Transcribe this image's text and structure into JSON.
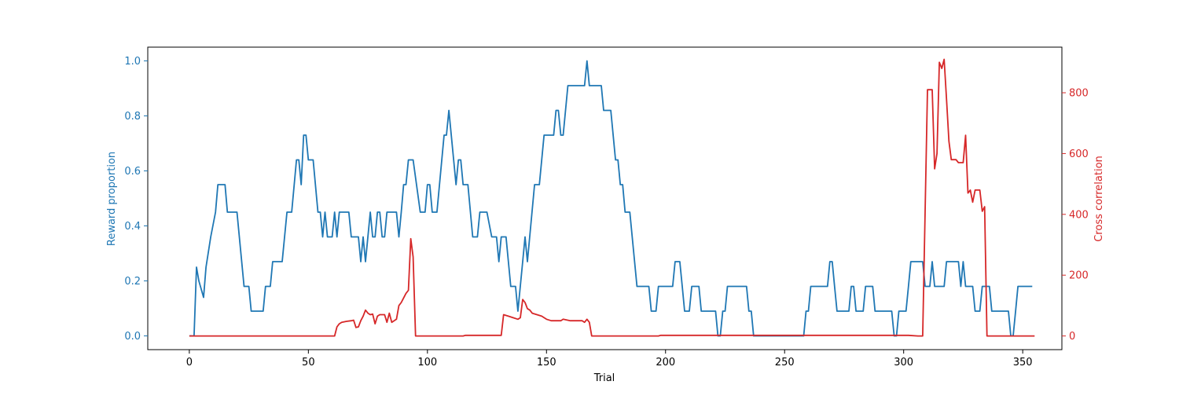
{
  "chart_data": {
    "type": "line",
    "title": "",
    "xlabel": "Trial",
    "ylabel_left": "Reward proportion",
    "ylabel_right": "Cross correlation",
    "xlim": [
      -17.45,
      366.45
    ],
    "ylim_left": [
      -0.05,
      1.05
    ],
    "ylim_right": [
      -45,
      950
    ],
    "x_ticks": [
      0,
      50,
      100,
      150,
      200,
      250,
      300,
      350
    ],
    "y_left_ticks": [
      "0.0",
      "0.2",
      "0.4",
      "0.6",
      "0.8",
      "1.0"
    ],
    "y_right_ticks": [
      0,
      200,
      400,
      600,
      800
    ],
    "colors": {
      "left": "#1f77b4",
      "right": "#d62728",
      "axes": "#000000"
    },
    "grid": false,
    "series": [
      {
        "axis": "left",
        "points": [
          [
            0,
            0
          ],
          [
            2,
            0
          ],
          [
            3,
            0.25
          ],
          [
            4,
            0.2
          ],
          [
            6,
            0.14
          ],
          [
            7,
            0.25
          ],
          [
            9,
            0.36
          ],
          [
            11,
            0.45
          ],
          [
            12,
            0.55
          ],
          [
            15,
            0.55
          ],
          [
            16,
            0.45
          ],
          [
            20,
            0.45
          ],
          [
            23,
            0.18
          ],
          [
            25,
            0.18
          ],
          [
            26,
            0.09
          ],
          [
            31,
            0.09
          ],
          [
            32,
            0.18
          ],
          [
            34,
            0.18
          ],
          [
            35,
            0.27
          ],
          [
            39,
            0.27
          ],
          [
            41,
            0.45
          ],
          [
            43,
            0.45
          ],
          [
            45,
            0.64
          ],
          [
            46,
            0.64
          ],
          [
            47,
            0.55
          ],
          [
            48,
            0.73
          ],
          [
            49,
            0.73
          ],
          [
            50,
            0.64
          ],
          [
            52,
            0.64
          ],
          [
            54,
            0.45
          ],
          [
            55,
            0.45
          ],
          [
            56,
            0.36
          ],
          [
            57,
            0.45
          ],
          [
            58,
            0.36
          ],
          [
            60,
            0.36
          ],
          [
            61,
            0.45
          ],
          [
            62,
            0.36
          ],
          [
            63,
            0.45
          ],
          [
            67,
            0.45
          ],
          [
            68,
            0.36
          ],
          [
            71,
            0.36
          ],
          [
            72,
            0.27
          ],
          [
            73,
            0.36
          ],
          [
            74,
            0.27
          ],
          [
            76,
            0.45
          ],
          [
            77,
            0.36
          ],
          [
            78,
            0.36
          ],
          [
            79,
            0.45
          ],
          [
            80,
            0.45
          ],
          [
            81,
            0.36
          ],
          [
            82,
            0.36
          ],
          [
            83,
            0.45
          ],
          [
            87,
            0.45
          ],
          [
            88,
            0.36
          ],
          [
            89,
            0.45
          ],
          [
            90,
            0.55
          ],
          [
            91,
            0.55
          ],
          [
            92,
            0.64
          ],
          [
            94,
            0.64
          ],
          [
            97,
            0.45
          ],
          [
            99,
            0.45
          ],
          [
            100,
            0.55
          ],
          [
            101,
            0.55
          ],
          [
            102,
            0.45
          ],
          [
            104,
            0.45
          ],
          [
            107,
            0.73
          ],
          [
            108,
            0.73
          ],
          [
            109,
            0.82
          ],
          [
            112,
            0.55
          ],
          [
            113,
            0.64
          ],
          [
            114,
            0.64
          ],
          [
            115,
            0.55
          ],
          [
            117,
            0.55
          ],
          [
            119,
            0.36
          ],
          [
            121,
            0.36
          ],
          [
            122,
            0.45
          ],
          [
            125,
            0.45
          ],
          [
            127,
            0.36
          ],
          [
            129,
            0.36
          ],
          [
            130,
            0.27
          ],
          [
            131,
            0.36
          ],
          [
            133,
            0.36
          ],
          [
            135,
            0.18
          ],
          [
            137,
            0.18
          ],
          [
            138,
            0.09
          ],
          [
            140,
            0.27
          ],
          [
            141,
            0.36
          ],
          [
            142,
            0.27
          ],
          [
            145,
            0.55
          ],
          [
            147,
            0.55
          ],
          [
            149,
            0.73
          ],
          [
            153,
            0.73
          ],
          [
            154,
            0.82
          ],
          [
            155,
            0.82
          ],
          [
            156,
            0.73
          ],
          [
            157,
            0.73
          ],
          [
            159,
            0.91
          ],
          [
            166,
            0.91
          ],
          [
            167,
            1.0
          ],
          [
            168,
            0.91
          ],
          [
            173,
            0.91
          ],
          [
            174,
            0.82
          ],
          [
            177,
            0.82
          ],
          [
            179,
            0.64
          ],
          [
            180,
            0.64
          ],
          [
            181,
            0.55
          ],
          [
            182,
            0.55
          ],
          [
            183,
            0.45
          ],
          [
            185,
            0.45
          ],
          [
            188,
            0.18
          ],
          [
            193,
            0.18
          ],
          [
            194,
            0.09
          ],
          [
            196,
            0.09
          ],
          [
            197,
            0.18
          ],
          [
            203,
            0.18
          ],
          [
            204,
            0.27
          ],
          [
            206,
            0.27
          ],
          [
            207,
            0.18
          ],
          [
            208,
            0.09
          ],
          [
            210,
            0.09
          ],
          [
            211,
            0.18
          ],
          [
            214,
            0.18
          ],
          [
            215,
            0.09
          ],
          [
            221,
            0.09
          ],
          [
            222,
            0
          ],
          [
            223,
            0
          ],
          [
            224,
            0.09
          ],
          [
            225,
            0.09
          ],
          [
            226,
            0.18
          ],
          [
            234,
            0.18
          ],
          [
            235,
            0.09
          ],
          [
            236,
            0.09
          ],
          [
            237,
            0
          ],
          [
            258,
            0
          ],
          [
            259,
            0.09
          ],
          [
            260,
            0.09
          ],
          [
            261,
            0.18
          ],
          [
            268,
            0.18
          ],
          [
            269,
            0.27
          ],
          [
            270,
            0.27
          ],
          [
            271,
            0.18
          ],
          [
            272,
            0.09
          ],
          [
            277,
            0.09
          ],
          [
            278,
            0.18
          ],
          [
            279,
            0.18
          ],
          [
            280,
            0.09
          ],
          [
            283,
            0.09
          ],
          [
            284,
            0.18
          ],
          [
            287,
            0.18
          ],
          [
            288,
            0.09
          ],
          [
            295,
            0.09
          ],
          [
            296,
            0
          ],
          [
            297,
            0
          ],
          [
            298,
            0.09
          ],
          [
            301,
            0.09
          ],
          [
            302,
            0.18
          ],
          [
            303,
            0.27
          ],
          [
            308,
            0.27
          ],
          [
            309,
            0.18
          ],
          [
            311,
            0.18
          ],
          [
            312,
            0.27
          ],
          [
            313,
            0.18
          ],
          [
            317,
            0.18
          ],
          [
            318,
            0.27
          ],
          [
            323,
            0.27
          ],
          [
            324,
            0.18
          ],
          [
            325,
            0.27
          ],
          [
            326,
            0.18
          ],
          [
            329,
            0.18
          ],
          [
            330,
            0.09
          ],
          [
            332,
            0.09
          ],
          [
            333,
            0.18
          ],
          [
            336,
            0.18
          ],
          [
            337,
            0.09
          ],
          [
            338,
            0.09
          ],
          [
            339,
            0.09
          ],
          [
            344,
            0.09
          ],
          [
            345,
            0
          ],
          [
            346,
            0
          ],
          [
            347,
            0.09
          ],
          [
            348,
            0.18
          ],
          [
            354,
            0.18
          ]
        ]
      },
      {
        "axis": "right",
        "points": [
          [
            0,
            0
          ],
          [
            61,
            0
          ],
          [
            62,
            30
          ],
          [
            63,
            40
          ],
          [
            64,
            45
          ],
          [
            66,
            48
          ],
          [
            68,
            50
          ],
          [
            69,
            52
          ],
          [
            70,
            28
          ],
          [
            71,
            30
          ],
          [
            72,
            50
          ],
          [
            73,
            65
          ],
          [
            74,
            85
          ],
          [
            75,
            75
          ],
          [
            76,
            70
          ],
          [
            77,
            72
          ],
          [
            78,
            40
          ],
          [
            79,
            65
          ],
          [
            80,
            70
          ],
          [
            82,
            70
          ],
          [
            83,
            45
          ],
          [
            84,
            75
          ],
          [
            85,
            45
          ],
          [
            86,
            50
          ],
          [
            87,
            55
          ],
          [
            88,
            100
          ],
          [
            89,
            110
          ],
          [
            91,
            140
          ],
          [
            92,
            150
          ],
          [
            93,
            320
          ],
          [
            94,
            260
          ],
          [
            95,
            0
          ],
          [
            115,
            0
          ],
          [
            116,
            2
          ],
          [
            131,
            2
          ],
          [
            132,
            70
          ],
          [
            134,
            65
          ],
          [
            136,
            60
          ],
          [
            138,
            55
          ],
          [
            139,
            60
          ],
          [
            140,
            120
          ],
          [
            141,
            110
          ],
          [
            142,
            90
          ],
          [
            143,
            85
          ],
          [
            144,
            75
          ],
          [
            146,
            70
          ],
          [
            148,
            65
          ],
          [
            150,
            55
          ],
          [
            152,
            50
          ],
          [
            156,
            50
          ],
          [
            157,
            55
          ],
          [
            160,
            50
          ],
          [
            165,
            50
          ],
          [
            166,
            45
          ],
          [
            167,
            55
          ],
          [
            168,
            45
          ],
          [
            169,
            0
          ],
          [
            197,
            0
          ],
          [
            198,
            2
          ],
          [
            302,
            2
          ],
          [
            306,
            0
          ],
          [
            308,
            0
          ],
          [
            309,
            410
          ],
          [
            310,
            810
          ],
          [
            312,
            810
          ],
          [
            313,
            550
          ],
          [
            314,
            600
          ],
          [
            315,
            900
          ],
          [
            316,
            880
          ],
          [
            317,
            910
          ],
          [
            318,
            780
          ],
          [
            319,
            640
          ],
          [
            320,
            580
          ],
          [
            322,
            580
          ],
          [
            323,
            570
          ],
          [
            325,
            570
          ],
          [
            326,
            660
          ],
          [
            327,
            470
          ],
          [
            328,
            480
          ],
          [
            329,
            440
          ],
          [
            330,
            480
          ],
          [
            332,
            480
          ],
          [
            333,
            410
          ],
          [
            334,
            425
          ],
          [
            335,
            0
          ],
          [
            355,
            0
          ]
        ]
      }
    ]
  }
}
